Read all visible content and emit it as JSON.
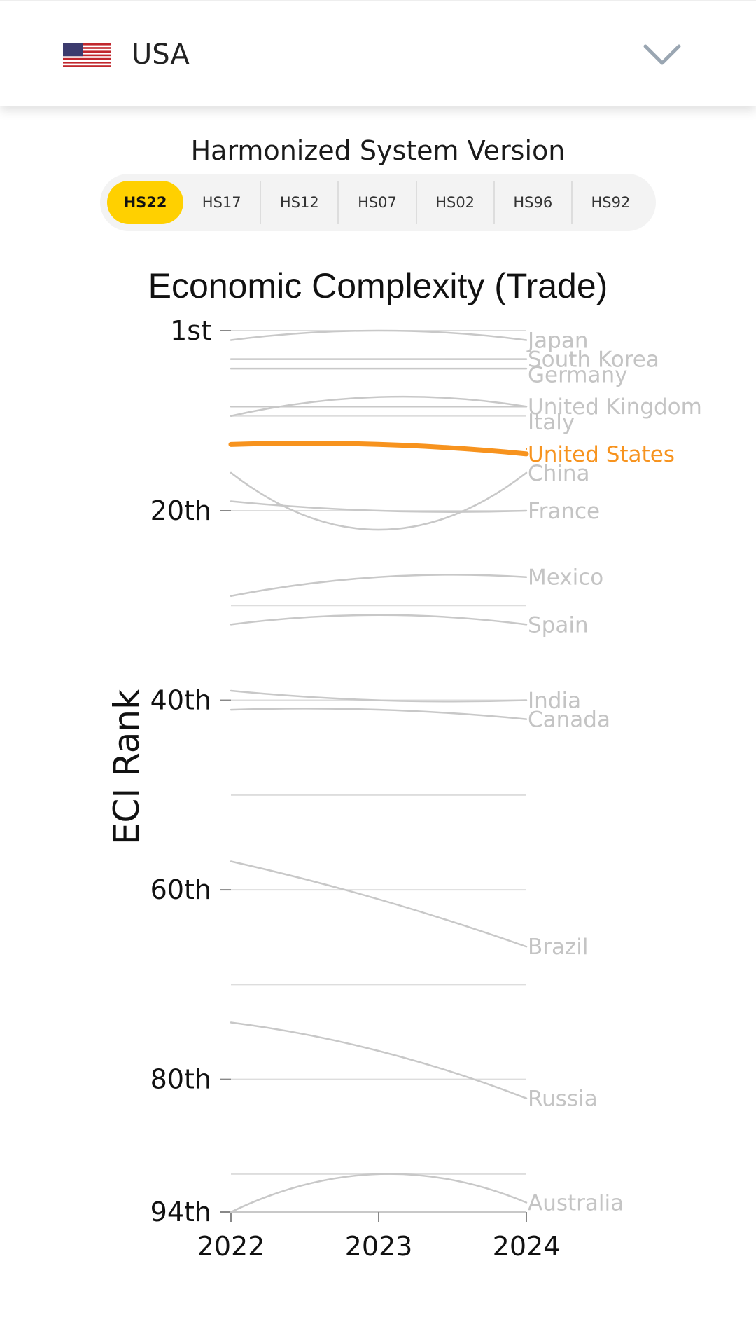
{
  "header": {
    "country": "USA",
    "flag_icon": "us-flag-icon",
    "dropdown_icon": "chevron-down-icon"
  },
  "hs_selector": {
    "title": "Harmonized System Version",
    "active": "HS22",
    "options": [
      "HS22",
      "HS17",
      "HS12",
      "HS07",
      "HS02",
      "HS96",
      "HS92"
    ],
    "active_color": "#ffd000"
  },
  "chart_data": {
    "type": "line",
    "title": "Economic Complexity (Trade)",
    "ylabel": "ECI Rank",
    "xlabel": "",
    "x": [
      "2022",
      "2023",
      "2024"
    ],
    "y_ticks": [
      "1st",
      "20th",
      "40th",
      "60th",
      "80th",
      "94th"
    ],
    "y_tick_values": [
      1,
      20,
      40,
      60,
      80,
      94
    ],
    "ylim": [
      1,
      94
    ],
    "y_inverted": true,
    "grid": true,
    "highlight_color": "#f7931e",
    "series_color": "#c8c8c8",
    "series": [
      {
        "name": "Japan",
        "values": [
          2,
          1,
          2
        ]
      },
      {
        "name": "South Korea",
        "values": [
          4,
          4,
          4
        ]
      },
      {
        "name": "Germany",
        "values": [
          5,
          5,
          5
        ]
      },
      {
        "name": "United Kingdom",
        "values": [
          10,
          8,
          9
        ]
      },
      {
        "name": "United States",
        "values": [
          13,
          13,
          14
        ],
        "highlight": true
      },
      {
        "name": "Italy",
        "values": [
          9,
          9,
          9
        ]
      },
      {
        "name": "China",
        "values": [
          16,
          22,
          16
        ]
      },
      {
        "name": "France",
        "values": [
          19,
          20,
          20
        ]
      },
      {
        "name": "Mexico",
        "values": [
          29,
          27,
          27
        ]
      },
      {
        "name": "Spain",
        "values": [
          32,
          31,
          32
        ]
      },
      {
        "name": "India",
        "values": [
          39,
          40,
          40
        ]
      },
      {
        "name": "Canada",
        "values": [
          41,
          41,
          42
        ]
      },
      {
        "name": "Brazil",
        "values": [
          57,
          61,
          66
        ]
      },
      {
        "name": "Russia",
        "values": [
          74,
          77,
          82
        ]
      },
      {
        "name": "Australia",
        "values": [
          94,
          90,
          93
        ]
      }
    ]
  }
}
